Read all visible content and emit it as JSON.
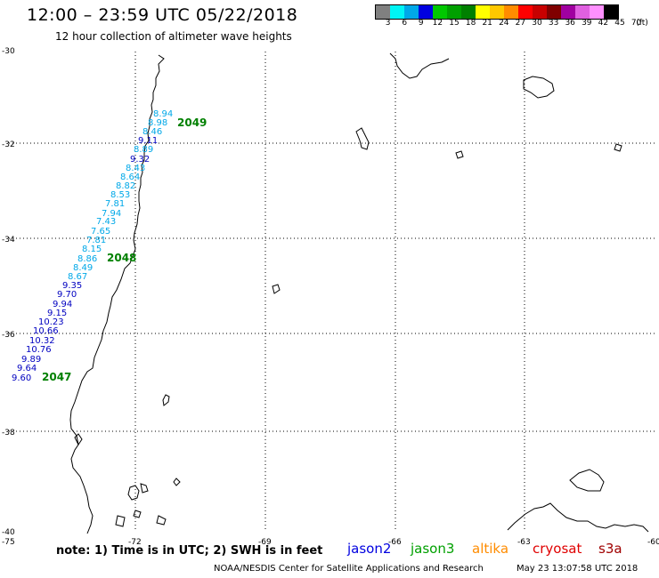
{
  "header": {
    "title": "12:00 – 23:59 UTC 05/22/2018",
    "subtitle": "12 hour collection of altimeter wave heights"
  },
  "legend": {
    "colors": [
      "#808080",
      "#00f5f5",
      "#00a8e8",
      "#0000e0",
      "#00c800",
      "#00a000",
      "#008000",
      "#ffff00",
      "#ffc800",
      "#ff8c00",
      "#ff0000",
      "#c80000",
      "#800000",
      "#a000a0",
      "#e060e0",
      "#ff90ff",
      "#000000"
    ],
    "labels": [
      "3",
      "6",
      "9",
      "12",
      "15",
      "18",
      "21",
      "24",
      "27",
      "30",
      "33",
      "36",
      "39",
      "42",
      "45",
      "70",
      "(ft)"
    ]
  },
  "axes": {
    "lat_labels": [
      "-30",
      "-32",
      "-34",
      "-36",
      "-38",
      "-40"
    ],
    "lon_labels": [
      "-75",
      "-72",
      "-69",
      "-66",
      "-63",
      "-60"
    ]
  },
  "passes": [
    {
      "label": "2049",
      "color": "#008000"
    },
    {
      "label": "2048",
      "color": "#008000"
    },
    {
      "label": "2047",
      "color": "#008000"
    }
  ],
  "observations": [
    {
      "value": "8.94",
      "color": "#00a8e8"
    },
    {
      "value": "8.98",
      "color": "#00a8e8"
    },
    {
      "value": "8.46",
      "color": "#00a8e8"
    },
    {
      "value": "9.11",
      "color": "#0000c0"
    },
    {
      "value": "8.89",
      "color": "#00a8e8"
    },
    {
      "value": "9.32",
      "color": "#0000c0"
    },
    {
      "value": "8.43",
      "color": "#00a8e8"
    },
    {
      "value": "8.64",
      "color": "#00a8e8"
    },
    {
      "value": "8.82",
      "color": "#00a8e8"
    },
    {
      "value": "8.53",
      "color": "#00a8e8"
    },
    {
      "value": "7.81",
      "color": "#00a8e8"
    },
    {
      "value": "7.94",
      "color": "#00a8e8"
    },
    {
      "value": "7.43",
      "color": "#00a8e8"
    },
    {
      "value": "7.65",
      "color": "#00a8e8"
    },
    {
      "value": "7.81",
      "color": "#00a8e8"
    },
    {
      "value": "8.15",
      "color": "#00a8e8"
    },
    {
      "value": "8.86",
      "color": "#00a8e8"
    },
    {
      "value": "8.49",
      "color": "#00a8e8"
    },
    {
      "value": "8.67",
      "color": "#00a8e8"
    },
    {
      "value": "9.35",
      "color": "#0000c0"
    },
    {
      "value": "9.70",
      "color": "#0000c0"
    },
    {
      "value": "9.94",
      "color": "#0000c0"
    },
    {
      "value": "9.15",
      "color": "#0000c0"
    },
    {
      "value": "10.23",
      "color": "#0000c0"
    },
    {
      "value": "10.66",
      "color": "#0000c0"
    },
    {
      "value": "10.32",
      "color": "#0000c0"
    },
    {
      "value": "10.76",
      "color": "#0000c0"
    },
    {
      "value": "9.89",
      "color": "#0000c0"
    },
    {
      "value": "9.64",
      "color": "#0000c0"
    },
    {
      "value": "9.60",
      "color": "#0000c0"
    }
  ],
  "footer": {
    "note": "note: 1) Time is in UTC; 2) SWH is in feet",
    "satellites": [
      {
        "name": "jason2",
        "color": "#0000e0"
      },
      {
        "name": "jason3",
        "color": "#00a000"
      },
      {
        "name": "altika",
        "color": "#ff8c00"
      },
      {
        "name": "cryosat",
        "color": "#e00000"
      },
      {
        "name": "s3a",
        "color": "#a00000"
      }
    ],
    "credit": "NOAA/NESDIS Center for Satellite Applications and Research",
    "timestamp": "May 23 13:07:58 UTC 2018"
  }
}
